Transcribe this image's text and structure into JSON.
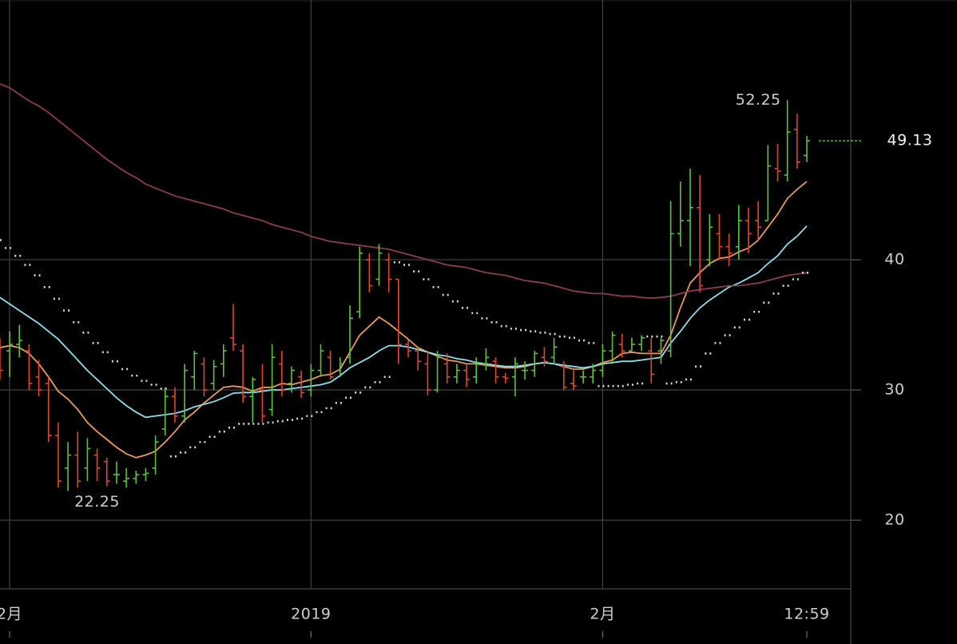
{
  "chart_data": {
    "type": "ohlc",
    "categories": [
      null,
      "2月",
      null,
      null,
      null,
      null,
      null,
      null,
      null,
      null,
      null,
      null,
      null,
      null,
      null,
      null,
      null,
      null,
      null,
      null,
      null,
      null,
      null,
      null,
      null,
      null,
      null,
      null,
      null,
      null,
      null,
      null,
      "2019",
      null,
      null,
      null,
      null,
      null,
      null,
      null,
      null,
      null,
      null,
      null,
      null,
      null,
      null,
      null,
      null,
      null,
      null,
      null,
      null,
      null,
      null,
      null,
      null,
      null,
      null,
      null,
      null,
      null,
      "2月",
      null,
      null,
      null,
      null,
      null,
      null,
      null,
      null,
      null,
      null,
      null,
      null,
      null,
      null,
      null,
      null,
      null,
      null,
      null,
      null,
      "12:59"
    ],
    "open": [
      32,
      33,
      33.5,
      33,
      31,
      30.5,
      26.5,
      24,
      25,
      24,
      25,
      24.5,
      23.5,
      23,
      23.2,
      23.5,
      24,
      27,
      29.5,
      28,
      31,
      32,
      30.5,
      32,
      34,
      33,
      29.5,
      30,
      28.5,
      32,
      30.5,
      31,
      30,
      31.5,
      32.5,
      31.5,
      32.5,
      36,
      40,
      38.5,
      40,
      38.5,
      33.5,
      33,
      32,
      30,
      32,
      31,
      31.5,
      31,
      32,
      32.2,
      31,
      31,
      31.5,
      31.5,
      32.5,
      32.5,
      31.8,
      30.5,
      31,
      31,
      31.5,
      33,
      33.5,
      33,
      33.5,
      33,
      33,
      33,
      42,
      43,
      44,
      40,
      42,
      41,
      41,
      43,
      43,
      43,
      47,
      46.5,
      50,
      48
    ],
    "high": [
      34,
      34.5,
      35,
      33.5,
      32.3,
      31,
      27.5,
      26,
      26.8,
      26.3,
      25.5,
      24.8,
      24.5,
      24,
      23.8,
      24,
      26.5,
      30.2,
      30.2,
      32,
      33,
      32.5,
      32.3,
      33.5,
      36.6,
      33.5,
      31,
      32,
      33.5,
      33,
      31.8,
      31.5,
      32,
      33.5,
      33,
      32.5,
      36.5,
      41,
      40.5,
      41.2,
      40.5,
      38.5,
      33.8,
      33.2,
      33,
      33,
      32.8,
      32,
      32,
      32.5,
      33.2,
      32.5,
      31.3,
      32.5,
      32.2,
      33,
      33.3,
      34,
      32.2,
      31.5,
      31.5,
      32,
      33.5,
      34.5,
      34.3,
      34,
      34.2,
      34,
      34,
      44.5,
      46,
      47,
      46.5,
      43.5,
      43.5,
      42,
      44.2,
      44,
      44.5,
      48.8,
      48.9,
      52.25,
      51.2,
      49.5
    ],
    "low": [
      30.8,
      31,
      32.5,
      30,
      29.5,
      26,
      22.5,
      22.25,
      22.5,
      23,
      23,
      22.6,
      22.8,
      22.5,
      22.8,
      23,
      23.5,
      26.5,
      27.5,
      27.5,
      30,
      29.5,
      30,
      31,
      33,
      29,
      27.5,
      27.5,
      28,
      29.5,
      29.8,
      29.4,
      29.5,
      31,
      30.8,
      31,
      32,
      35.5,
      37.5,
      38,
      37.5,
      32,
      32.5,
      31.5,
      29.6,
      29.8,
      30.5,
      30.5,
      30.2,
      30.5,
      31.5,
      30.5,
      30.5,
      29.5,
      30.8,
      31,
      31.8,
      32,
      30,
      30,
      30.5,
      30.5,
      31,
      32,
      32.5,
      33,
      33,
      30.5,
      32,
      32.5,
      41,
      39.5,
      37.5,
      39.5,
      40,
      39.5,
      40,
      40.5,
      41.5,
      43,
      46,
      46,
      47,
      47.5
    ],
    "close": [
      31.5,
      33.5,
      33.8,
      30.5,
      30,
      26.5,
      23,
      25,
      23,
      25.5,
      24,
      23,
      23.5,
      23.2,
      23.5,
      23.6,
      26,
      29.5,
      28,
      31.5,
      32.8,
      30,
      31.8,
      33,
      33.5,
      29.5,
      30.8,
      28,
      32.5,
      30,
      31.5,
      29.8,
      31.5,
      33,
      31,
      32,
      35.5,
      40.5,
      38,
      40.5,
      38.5,
      33.5,
      33,
      32.2,
      30,
      32.5,
      31,
      31.5,
      30.8,
      32,
      32.5,
      31,
      30.9,
      32,
      31.5,
      32.8,
      32.2,
      33.3,
      30.2,
      30.3,
      31,
      31.5,
      33,
      34.2,
      33,
      33.5,
      34,
      31.2,
      33.8,
      42,
      43,
      44,
      38,
      42.5,
      41,
      40.5,
      43,
      42,
      42.5,
      47.2,
      46.8,
      49.8,
      47.5,
      49.13
    ],
    "up_color": "#5cc43c",
    "down_color": "#e2472b",
    "series": [
      {
        "color": "#e79a5c",
        "values": [
          33.25,
          33.4,
          33.25,
          32.8,
          32.0,
          31.0,
          29.9,
          29.3,
          28.5,
          27.5,
          26.8,
          26.2,
          25.6,
          25.1,
          24.8,
          25.0,
          25.3,
          26.0,
          26.8,
          27.7,
          28.3,
          29.0,
          29.6,
          30.2,
          30.3,
          30.2,
          29.9,
          30.2,
          30.2,
          30.5,
          30.4,
          30.6,
          30.8,
          31.1,
          31.2,
          31.6,
          32.9,
          34.2,
          34.9,
          35.6,
          35.1,
          34.5,
          33.9,
          33.25,
          32.9,
          32.6,
          32.3,
          32.2,
          32.0,
          32.0,
          31.9,
          31.8,
          31.7,
          31.7,
          31.8,
          32.0,
          32.1,
          32.0,
          31.8,
          31.6,
          31.6,
          31.8,
          32.1,
          32.3,
          32.8,
          32.9,
          32.8,
          32.8,
          32.8,
          34.2,
          36.3,
          38.2,
          39.0,
          39.7,
          40.1,
          40.2,
          40.6,
          40.9,
          41.5,
          42.5,
          43.5,
          44.7,
          45.4,
          46.0
        ]
      },
      {
        "color": "#8fdcec",
        "values": [
          37.1,
          36.6,
          36.1,
          35.6,
          35.1,
          34.5,
          33.9,
          33.1,
          32.3,
          31.5,
          30.8,
          30.1,
          29.4,
          28.8,
          28.3,
          27.9,
          28.0,
          28.1,
          28.2,
          28.4,
          28.7,
          28.9,
          29.1,
          29.4,
          29.75,
          29.8,
          29.8,
          29.9,
          30.0,
          30.0,
          30.1,
          30.2,
          30.3,
          30.4,
          30.6,
          31.1,
          31.7,
          32.1,
          32.5,
          33.0,
          33.4,
          33.4,
          33.3,
          33.1,
          32.9,
          32.7,
          32.6,
          32.4,
          32.3,
          32.1,
          32.0,
          31.9,
          31.8,
          31.8,
          31.9,
          32.0,
          32.1,
          32.0,
          31.9,
          31.8,
          31.7,
          31.8,
          32.0,
          32.1,
          32.2,
          32.2,
          32.3,
          32.4,
          32.5,
          33.6,
          34.5,
          35.5,
          36.3,
          36.9,
          37.4,
          37.9,
          38.2,
          38.6,
          39.0,
          39.7,
          40.3,
          41.2,
          41.8,
          42.6
        ]
      },
      {
        "color": "#8a3c52",
        "values": [
          53.5,
          53.2,
          52.7,
          52.2,
          51.8,
          51.3,
          50.7,
          50.1,
          49.5,
          48.9,
          48.3,
          47.7,
          47.2,
          46.7,
          46.3,
          45.8,
          45.5,
          45.2,
          44.9,
          44.7,
          44.5,
          44.3,
          44.1,
          43.9,
          43.6,
          43.4,
          43.2,
          43.0,
          42.7,
          42.5,
          42.3,
          42.1,
          41.8,
          41.6,
          41.4,
          41.3,
          41.2,
          41.1,
          41.0,
          40.9,
          40.8,
          40.6,
          40.4,
          40.2,
          40.0,
          39.8,
          39.6,
          39.5,
          39.4,
          39.2,
          39.0,
          38.9,
          38.8,
          38.6,
          38.4,
          38.3,
          38.2,
          38.0,
          37.8,
          37.6,
          37.5,
          37.4,
          37.4,
          37.3,
          37.2,
          37.2,
          37.1,
          37.05,
          37.1,
          37.2,
          37.4,
          37.6,
          37.7,
          37.8,
          37.9,
          38.0,
          38.0,
          38.1,
          38.2,
          38.4,
          38.6,
          38.8,
          38.9,
          39.0
        ]
      }
    ],
    "sar": {
      "color": "#d8d8d8",
      "values": [
        41.5,
        40.9,
        40.3,
        39.6,
        38.8,
        37.9,
        37.0,
        36.1,
        35.2,
        34.4,
        33.6,
        32.9,
        32.2,
        31.6,
        31.1,
        30.7,
        30.4,
        30.1,
        24.9,
        25.2,
        25.6,
        26.0,
        26.4,
        26.8,
        27.1,
        27.4,
        27.4,
        27.4,
        27.5,
        27.6,
        27.7,
        27.8,
        28.0,
        28.3,
        28.6,
        29.0,
        29.4,
        29.8,
        30.2,
        30.6,
        31.0,
        39.8,
        39.6,
        39.1,
        38.5,
        37.9,
        37.3,
        36.8,
        36.3,
        35.9,
        35.5,
        35.2,
        34.9,
        34.7,
        34.6,
        34.5,
        34.4,
        34.3,
        34.1,
        34.0,
        33.8,
        33.6,
        30.3,
        30.3,
        30.3,
        30.4,
        30.5,
        34.1,
        34.1,
        30.5,
        30.6,
        30.8,
        31.8,
        32.8,
        33.6,
        34.2,
        34.8,
        35.4,
        36.0,
        36.7,
        37.4,
        38.0,
        38.5,
        39.0
      ]
    },
    "high_label": "52.25",
    "low_label": "22.25",
    "last_label": "49.13",
    "ylim": [
      14.85,
      59.94
    ],
    "yticks": [
      20,
      30,
      40
    ],
    "grid": true
  }
}
